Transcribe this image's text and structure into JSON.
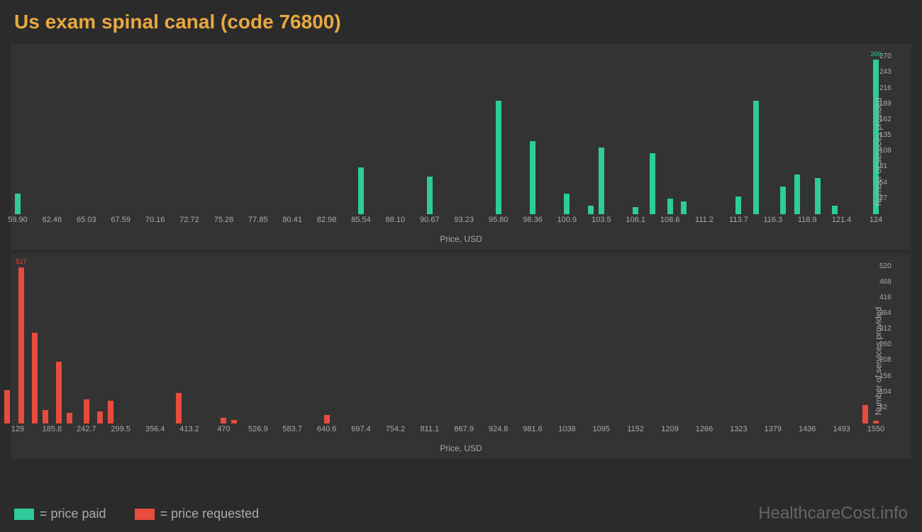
{
  "title": "Us exam spinal canal (code 76800)",
  "colors": {
    "background": "#2b2b2b",
    "chart_bg": "#333333",
    "title": "#e8a940",
    "text": "#aaaaaa",
    "paid": "#2ecc9a",
    "requested": "#e74c3c",
    "watermark": "#666666"
  },
  "chart1": {
    "type": "bar",
    "color": "#2ecc9a",
    "x_label": "Price, USD",
    "y_label": "Number of services provided",
    "x_ticks": [
      "59.90",
      "62.46",
      "65.03",
      "67.59",
      "70.16",
      "72.72",
      "75.28",
      "77.85",
      "80.41",
      "82.98",
      "85.54",
      "88.10",
      "90.67",
      "93.23",
      "95.80",
      "98.36",
      "100.9",
      "103.5",
      "106.1",
      "108.6",
      "111.2",
      "113.7",
      "116.3",
      "118.9",
      "121.4",
      "124"
    ],
    "y_ticks": [
      27,
      54,
      81,
      108,
      135,
      162,
      189,
      216,
      243,
      270
    ],
    "y_max": 280,
    "bars": [
      {
        "x_idx": 0,
        "value": 35
      },
      {
        "x_idx": 10,
        "value": 80
      },
      {
        "x_idx": 12,
        "value": 65
      },
      {
        "x_idx": 14,
        "value": 195
      },
      {
        "x_idx": 15,
        "value": 125
      },
      {
        "x_idx": 16,
        "value": 35
      },
      {
        "x_idx": 16.7,
        "value": 15
      },
      {
        "x_idx": 17,
        "value": 115
      },
      {
        "x_idx": 18,
        "value": 12
      },
      {
        "x_idx": 18.5,
        "value": 105
      },
      {
        "x_idx": 19,
        "value": 27
      },
      {
        "x_idx": 19.4,
        "value": 22
      },
      {
        "x_idx": 21,
        "value": 30
      },
      {
        "x_idx": 21.5,
        "value": 195
      },
      {
        "x_idx": 22.3,
        "value": 48
      },
      {
        "x_idx": 22.7,
        "value": 68
      },
      {
        "x_idx": 23.3,
        "value": 62
      },
      {
        "x_idx": 23.8,
        "value": 15
      },
      {
        "x_idx": 25,
        "value": 266,
        "label": "266"
      }
    ]
  },
  "chart2": {
    "type": "bar",
    "color": "#e74c3c",
    "x_label": "Price, USD",
    "y_label": "Number of services provided",
    "x_ticks": [
      "129",
      "185.8",
      "242.7",
      "299.5",
      "356.4",
      "413.2",
      "470",
      "526.9",
      "583.7",
      "640.6",
      "697.4",
      "754.2",
      "811.1",
      "867.9",
      "924.8",
      "981.6",
      "1038",
      "1095",
      "1152",
      "1209",
      "1266",
      "1323",
      "1379",
      "1436",
      "1493",
      "1550"
    ],
    "y_ticks": [
      52,
      104,
      156,
      208,
      260,
      312,
      364,
      416,
      468,
      520
    ],
    "y_max": 540,
    "bars": [
      {
        "x_idx": -0.3,
        "value": 110
      },
      {
        "x_idx": 0.1,
        "value": 517,
        "label": "517"
      },
      {
        "x_idx": 0.5,
        "value": 300
      },
      {
        "x_idx": 0.8,
        "value": 45
      },
      {
        "x_idx": 1.2,
        "value": 205
      },
      {
        "x_idx": 1.5,
        "value": 35
      },
      {
        "x_idx": 2,
        "value": 80
      },
      {
        "x_idx": 2.4,
        "value": 40
      },
      {
        "x_idx": 2.7,
        "value": 75
      },
      {
        "x_idx": 4.7,
        "value": 100
      },
      {
        "x_idx": 6,
        "value": 18
      },
      {
        "x_idx": 6.3,
        "value": 12
      },
      {
        "x_idx": 9,
        "value": 28
      },
      {
        "x_idx": 24.7,
        "value": 60
      },
      {
        "x_idx": 25,
        "value": 10
      }
    ]
  },
  "legend": {
    "paid": "= price paid",
    "requested": "= price requested"
  },
  "watermark": "HealthcareCost.info"
}
